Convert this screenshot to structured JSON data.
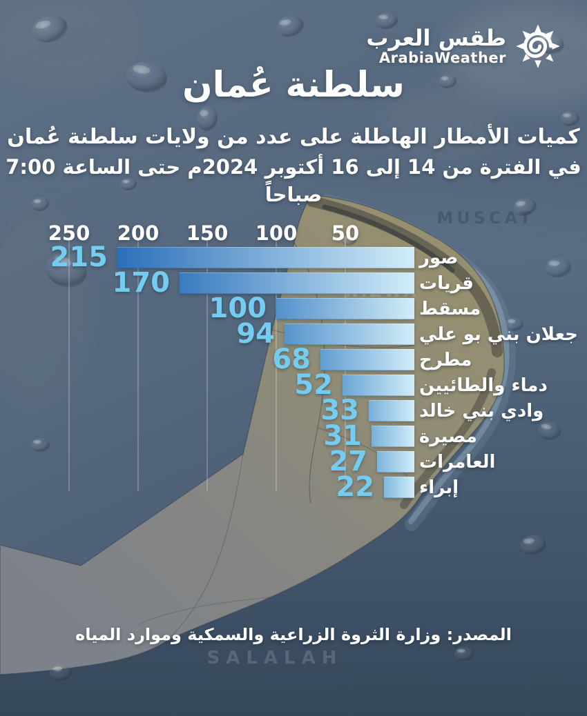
{
  "logo": {
    "name_ar": "طقس العرب",
    "name_en": "ArabiaWeather",
    "icon": "sun-spiral-icon"
  },
  "header": {
    "title": "سلطنة عُمان",
    "subtitle": "كميات الأمطار الهاطلة على عدد من ولايات سلطنة عُمان",
    "period": "في الفترة من 14 إلى 16 أكتوبر 2024م حتى الساعة 7:00 صباحاً"
  },
  "chart_data": {
    "type": "bar",
    "orientation": "horizontal-rtl",
    "title": "كميات الأمطار الهاطلة على عدد من ولايات سلطنة عُمان",
    "categories": [
      "صور",
      "قريات",
      "مسقط",
      "جعلان بني بو علي",
      "مطرح",
      "دماء والطائيين",
      "وادي بني خالد",
      "مصيرة",
      "العامرات",
      "إبراء"
    ],
    "values": [
      215,
      170,
      100,
      94,
      68,
      52,
      33,
      31,
      27,
      22
    ],
    "axis_ticks": [
      250,
      200,
      150,
      100,
      50
    ],
    "xlim": [
      0,
      250
    ],
    "grid": true,
    "legend": "none",
    "value_label_color": "#74cdf1",
    "bar_color_dark": "#2b6fb9",
    "bar_color_light": "#d2edf9"
  },
  "map_labels": {
    "muscat": "MUSCAT",
    "nizwa": "NIZWA",
    "salalah": "SALALAH"
  },
  "footer": {
    "source": "المصدر: وزارة الثروة الزراعية والسمكية وموارد المياه"
  },
  "colors": {
    "background": "#53667c",
    "sea": "#3c4f63",
    "land": "#8d8977",
    "text": "#ffffff",
    "value_text": "#74cdf1"
  }
}
